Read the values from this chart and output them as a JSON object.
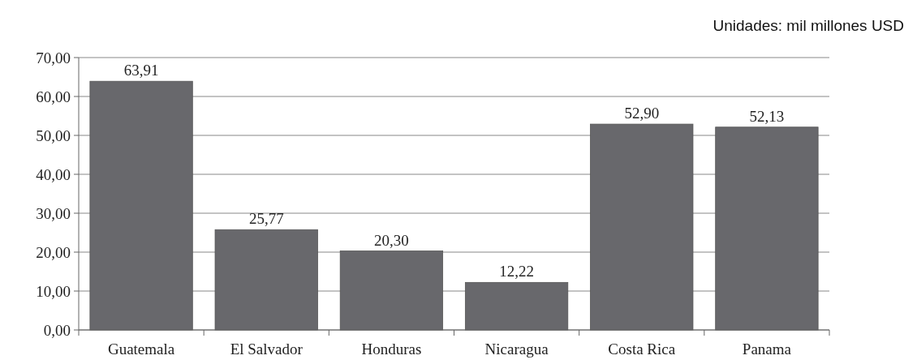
{
  "chart_data": {
    "type": "bar",
    "categories": [
      "Guatemala",
      "El Salvador",
      "Honduras",
      "Nicaragua",
      "Costa Rica",
      "Panama"
    ],
    "values": [
      63.91,
      25.77,
      20.3,
      12.22,
      52.9,
      52.13
    ],
    "value_labels": [
      "63,91",
      "25,77",
      "20,30",
      "12,22",
      "52,90",
      "52,13"
    ],
    "color": "#68686c",
    "ylim": [
      0,
      70
    ],
    "yticks": [
      {
        "value": 0,
        "label": "0,00"
      },
      {
        "value": 10,
        "label": "10,00"
      },
      {
        "value": 20,
        "label": "20,00"
      },
      {
        "value": 30,
        "label": "30,00"
      },
      {
        "value": 40,
        "label": "40,00"
      },
      {
        "value": 50,
        "label": "50,00"
      },
      {
        "value": 60,
        "label": "60,00"
      },
      {
        "value": 70,
        "label": "70,00"
      }
    ],
    "grid": "y",
    "annotations": [
      "Unidades: mil millones USD"
    ]
  }
}
